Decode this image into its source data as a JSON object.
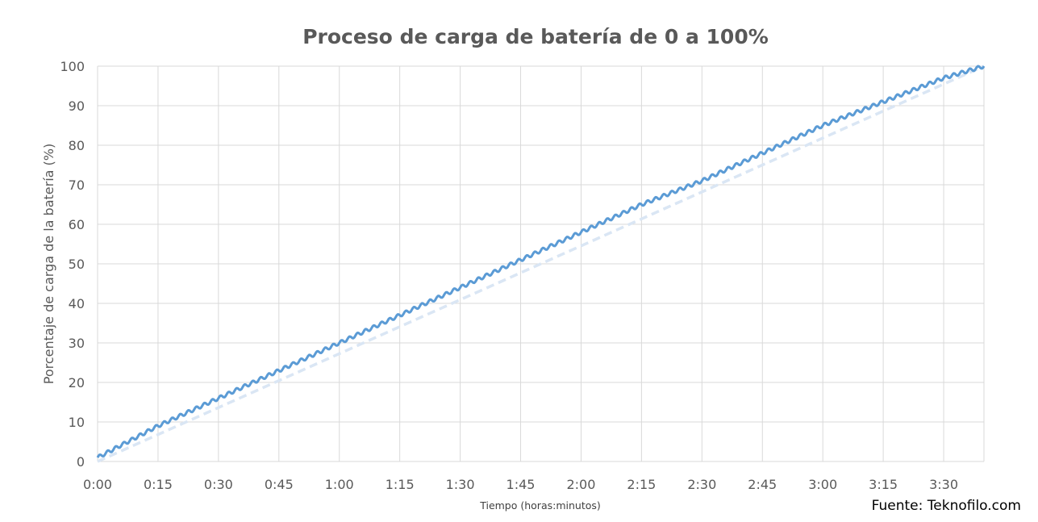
{
  "chart_data": {
    "type": "line",
    "title": "Proceso de carga de batería de 0 a 100%",
    "xlabel": "Tiempo (horas:minutos)",
    "ylabel": "Porcentaje de carga de la batería (%)",
    "xlim": [
      0,
      220
    ],
    "ylim": [
      0,
      100
    ],
    "x_ticks": [
      "0:00",
      "0:15",
      "0:30",
      "0:45",
      "1:00",
      "1:15",
      "1:30",
      "1:45",
      "2:00",
      "2:15",
      "2:30",
      "2:45",
      "3:00",
      "3:15",
      "3:30"
    ],
    "x_tick_minutes": [
      0,
      15,
      30,
      45,
      60,
      75,
      90,
      105,
      120,
      135,
      150,
      165,
      180,
      195,
      210
    ],
    "y_ticks": [
      0,
      10,
      20,
      30,
      40,
      50,
      60,
      70,
      80,
      90,
      100
    ],
    "grid": true,
    "legend": "none",
    "series": [
      {
        "style": "solid-stepped",
        "color": "#5b9bd5",
        "x": [
          0,
          15,
          30,
          45,
          60,
          75,
          90,
          105,
          120,
          135,
          150,
          165,
          180,
          195,
          210,
          220
        ],
        "y": [
          1,
          9,
          16,
          23,
          30,
          37,
          44,
          51,
          58,
          65,
          71,
          78,
          85,
          91,
          97,
          100
        ]
      },
      {
        "style": "dashed",
        "color": "#dae6f4",
        "x": [
          0,
          220
        ],
        "y": [
          0,
          100
        ]
      }
    ]
  },
  "source": "Fuente: Teknofilo.com"
}
